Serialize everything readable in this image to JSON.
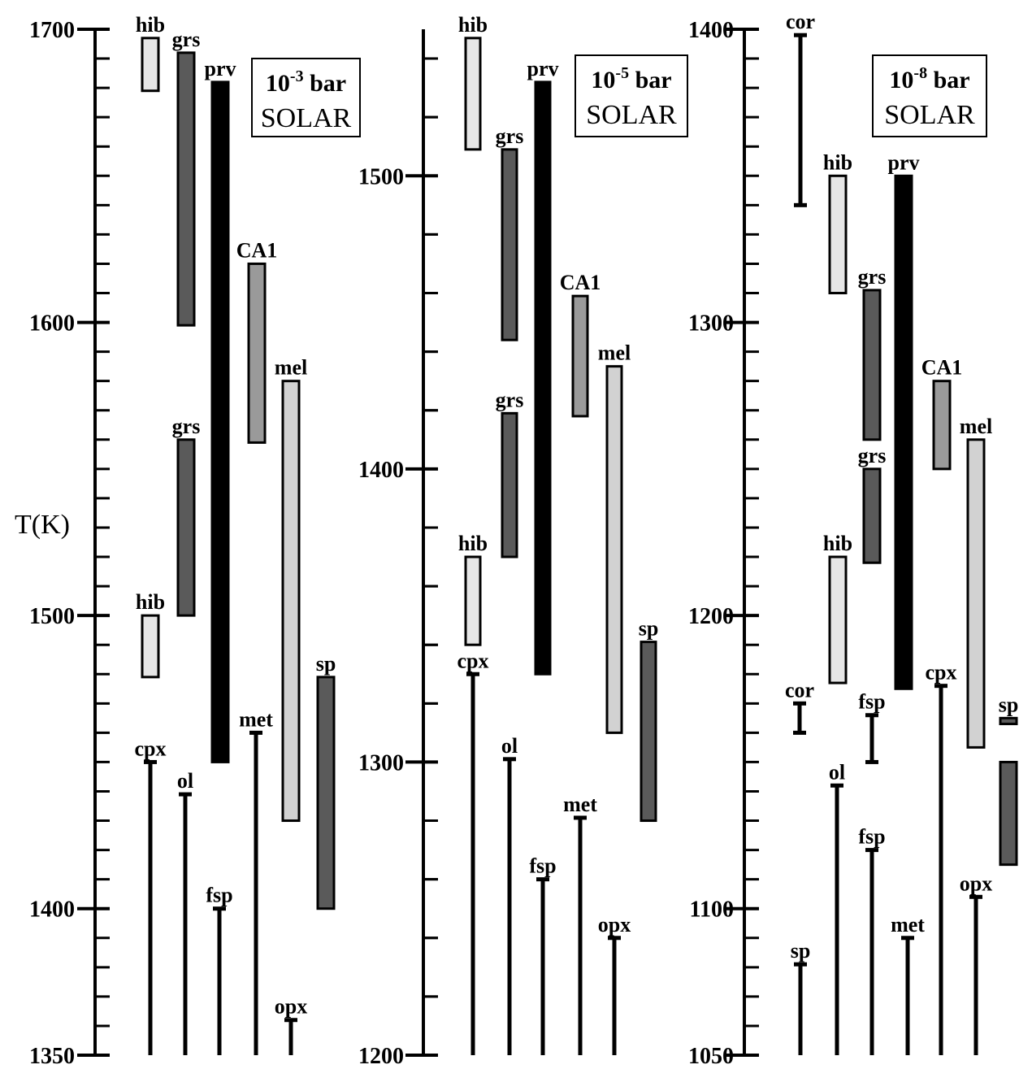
{
  "figure": {
    "ylabel": "T(K)"
  },
  "colors": {
    "axis": "#000000",
    "outline": "#000000"
  },
  "chart_data": [
    {
      "type": "bar",
      "panel": "left",
      "condition_lines": [
        "10-3 bar",
        "SOLAR"
      ],
      "pressure_base": "10",
      "pressure_exp": "-3",
      "pressure_unit": "bar",
      "composition": "SOLAR",
      "ylim": [
        1350,
        1700
      ],
      "major_ticks": [
        1350,
        1400,
        1500,
        1600,
        1700
      ],
      "tick_labels": [
        "1350",
        "1400",
        "1500",
        "1600",
        "1700"
      ],
      "minor_step": 20,
      "ylabel": "T(K)",
      "series": [
        {
          "label": "hib",
          "kind": "bar",
          "low": 1679,
          "high": 1697,
          "fill": "#e6e6e6"
        },
        {
          "label": "grs",
          "kind": "bar",
          "low": 1599,
          "high": 1692,
          "fill": "#5a5a5a"
        },
        {
          "label": "prv",
          "kind": "bar",
          "low": 1450,
          "high": 1682,
          "fill": "#000000"
        },
        {
          "label": "CA1",
          "kind": "bar",
          "low": 1559,
          "high": 1620,
          "fill": "#9a9a9a"
        },
        {
          "label": "mel",
          "kind": "bar",
          "low": 1430,
          "high": 1580,
          "fill": "#d2d2d2"
        },
        {
          "label": "grs",
          "kind": "bar",
          "low": 1500,
          "high": 1560,
          "fill": "#5a5a5a"
        },
        {
          "label": "hib",
          "kind": "bar",
          "low": 1479,
          "high": 1500,
          "fill": "#e6e6e6"
        },
        {
          "label": "sp",
          "kind": "bar",
          "low": 1400,
          "high": 1479,
          "fill": "#5a5a5a"
        },
        {
          "label": "met",
          "kind": "line",
          "low": 1350,
          "high": 1460
        },
        {
          "label": "cpx",
          "kind": "line",
          "low": 1350,
          "high": 1450
        },
        {
          "label": "ol",
          "kind": "line",
          "low": 1350,
          "high": 1439
        },
        {
          "label": "fsp",
          "kind": "line",
          "low": 1350,
          "high": 1400
        },
        {
          "label": "opx",
          "kind": "line",
          "low": 1350,
          "high": 1362
        }
      ]
    },
    {
      "type": "bar",
      "panel": "middle",
      "condition_lines": [
        "10-5 bar",
        "SOLAR"
      ],
      "pressure_base": "10",
      "pressure_exp": "-5",
      "pressure_unit": "bar",
      "composition": "SOLAR",
      "ylim": [
        1200,
        1550
      ],
      "major_ticks": [
        1200,
        1300,
        1400,
        1500
      ],
      "tick_labels": [
        "1200",
        "1300",
        "1400",
        "1500"
      ],
      "minor_step": 20,
      "series": [
        {
          "label": "hib",
          "kind": "bar",
          "low": 1509,
          "high": 1547,
          "fill": "#e6e6e6"
        },
        {
          "label": "grs",
          "kind": "bar",
          "low": 1444,
          "high": 1509,
          "fill": "#5a5a5a"
        },
        {
          "label": "prv",
          "kind": "bar",
          "low": 1330,
          "high": 1532,
          "fill": "#000000"
        },
        {
          "label": "CA1",
          "kind": "bar",
          "low": 1418,
          "high": 1459,
          "fill": "#9a9a9a"
        },
        {
          "label": "mel",
          "kind": "bar",
          "low": 1310,
          "high": 1435,
          "fill": "#d2d2d2"
        },
        {
          "label": "grs",
          "kind": "bar",
          "low": 1370,
          "high": 1419,
          "fill": "#5a5a5a"
        },
        {
          "label": "hib",
          "kind": "bar",
          "low": 1340,
          "high": 1370,
          "fill": "#e6e6e6"
        },
        {
          "label": "sp",
          "kind": "bar",
          "low": 1280,
          "high": 1341,
          "fill": "#5a5a5a"
        },
        {
          "label": "cpx",
          "kind": "line",
          "low": 1200,
          "high": 1330
        },
        {
          "label": "ol",
          "kind": "line",
          "low": 1200,
          "high": 1301
        },
        {
          "label": "met",
          "kind": "line",
          "low": 1200,
          "high": 1281
        },
        {
          "label": "fsp",
          "kind": "line",
          "low": 1200,
          "high": 1260
        },
        {
          "label": "opx",
          "kind": "line",
          "low": 1200,
          "high": 1240
        }
      ]
    },
    {
      "type": "bar",
      "panel": "right",
      "condition_lines": [
        "10-8 bar",
        "SOLAR"
      ],
      "pressure_base": "10",
      "pressure_exp": "-8",
      "pressure_unit": "bar",
      "composition": "SOLAR",
      "ylim": [
        1050,
        1400
      ],
      "major_ticks": [
        1050,
        1100,
        1200,
        1300,
        1400
      ],
      "tick_labels": [
        "1050",
        "1100",
        "1200",
        "1300",
        "1400"
      ],
      "minor_step": 20,
      "series": [
        {
          "label": "cor",
          "kind": "line",
          "low": 1340,
          "high": 1398
        },
        {
          "label": "hib",
          "kind": "bar",
          "low": 1310,
          "high": 1350,
          "fill": "#e6e6e6"
        },
        {
          "label": "prv",
          "kind": "bar",
          "low": 1175,
          "high": 1350,
          "fill": "#000000"
        },
        {
          "label": "grs",
          "kind": "bar",
          "low": 1260,
          "high": 1311,
          "fill": "#5a5a5a"
        },
        {
          "label": "CA1",
          "kind": "bar",
          "low": 1250,
          "high": 1280,
          "fill": "#9a9a9a"
        },
        {
          "label": "mel",
          "kind": "bar",
          "low": 1155,
          "high": 1260,
          "fill": "#d2d2d2"
        },
        {
          "label": "grs",
          "kind": "bar",
          "low": 1218,
          "high": 1250,
          "fill": "#5a5a5a"
        },
        {
          "label": "hib",
          "kind": "bar",
          "low": 1177,
          "high": 1220,
          "fill": "#e6e6e6"
        },
        {
          "label": "sp",
          "kind": "bar",
          "low": 1163,
          "high": 1165,
          "fill": "#5a5a5a"
        },
        {
          "label": "",
          "kind": "bar",
          "low": 1115,
          "high": 1150,
          "fill": "#5a5a5a"
        },
        {
          "label": "cor",
          "kind": "line",
          "low": 1160,
          "high": 1170
        },
        {
          "label": "fsp",
          "kind": "line",
          "low": 1150,
          "high": 1166
        },
        {
          "label": "cpx",
          "kind": "line",
          "low": 1050,
          "high": 1176
        },
        {
          "label": "ol",
          "kind": "line",
          "low": 1050,
          "high": 1142
        },
        {
          "label": "fsp",
          "kind": "line",
          "low": 1050,
          "high": 1120
        },
        {
          "label": "opx",
          "kind": "line",
          "low": 1050,
          "high": 1104
        },
        {
          "label": "met",
          "kind": "line",
          "low": 1050,
          "high": 1090
        },
        {
          "label": "sp",
          "kind": "line",
          "low": 1050,
          "high": 1081
        }
      ]
    }
  ]
}
